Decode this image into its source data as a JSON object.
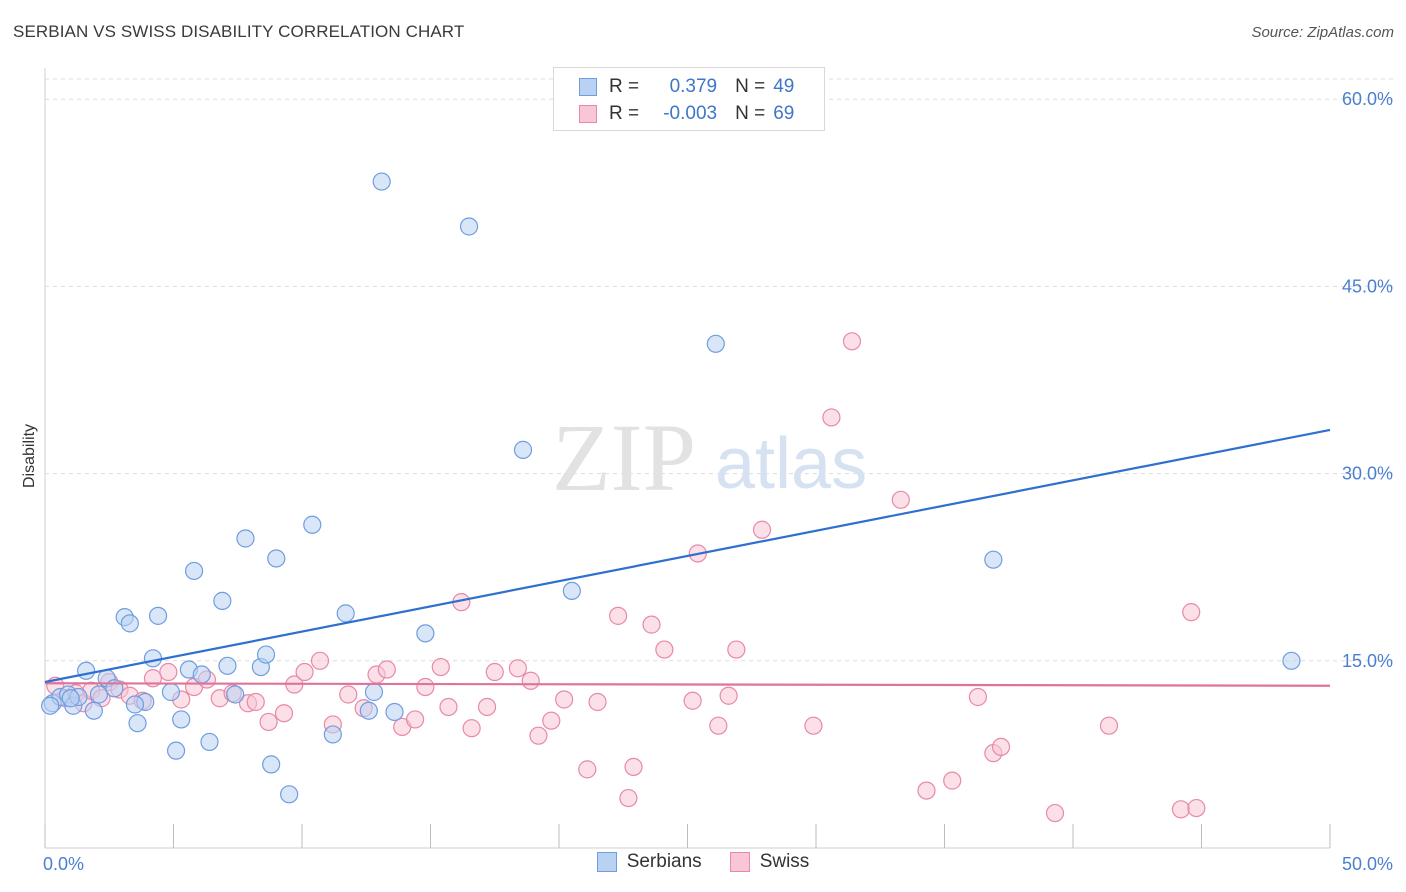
{
  "header": {
    "title": "SERBIAN VS SWISS DISABILITY CORRELATION CHART",
    "source": "Source: ZipAtlas.com"
  },
  "watermark": {
    "zip": "ZIP",
    "atlas": "atlas"
  },
  "legend": {
    "rows": [
      {
        "r_label": "R =",
        "r_value": "0.379",
        "n_label": "N =",
        "n_value": "49"
      },
      {
        "r_label": "R =",
        "r_value": "-0.003",
        "n_label": "N =",
        "n_value": "69"
      }
    ]
  },
  "bottom_legend": {
    "serbians": "Serbians",
    "swiss": "Swiss"
  },
  "colors": {
    "serbian_fill": "#b9d1f3",
    "serbian_stroke": "#6f9de0",
    "serbian_line": "#2f6fd0",
    "swiss_fill": "#f8c6d6",
    "swiss_stroke": "#e889a8",
    "swiss_line": "#e0739a",
    "tick_text": "#4a7fd0",
    "grid": "#dcdcdc"
  },
  "chart_data": {
    "type": "scatter",
    "title": "SERBIAN VS SWISS DISABILITY CORRELATION CHART",
    "xlabel": "",
    "ylabel": "Disability",
    "xlim": [
      0,
      50
    ],
    "ylim": [
      0,
      62.5
    ],
    "x_tick_labels": [
      "0.0%",
      "50.0%"
    ],
    "y_ticks": [
      15,
      30,
      45,
      60
    ],
    "y_tick_labels": [
      "15.0%",
      "30.0%",
      "45.0%",
      "60.0%"
    ],
    "series": [
      {
        "name": "Serbians",
        "trend": {
          "x": [
            0,
            50
          ],
          "y": [
            13.3,
            33.5
          ]
        },
        "points": [
          [
            0.3,
            11.6
          ],
          [
            0.6,
            12.1
          ],
          [
            0.9,
            12.3
          ],
          [
            1.1,
            11.4
          ],
          [
            1.3,
            12.1
          ],
          [
            1.6,
            14.2
          ],
          [
            1.9,
            11.0
          ],
          [
            2.1,
            12.3
          ],
          [
            2.4,
            13.6
          ],
          [
            2.7,
            12.8
          ],
          [
            3.1,
            18.5
          ],
          [
            3.3,
            18.0
          ],
          [
            3.6,
            10.0
          ],
          [
            3.9,
            11.7
          ],
          [
            4.2,
            15.2
          ],
          [
            4.4,
            18.6
          ],
          [
            4.9,
            12.5
          ],
          [
            5.1,
            7.8
          ],
          [
            5.3,
            10.3
          ],
          [
            5.6,
            14.3
          ],
          [
            5.8,
            22.2
          ],
          [
            6.1,
            13.9
          ],
          [
            6.4,
            8.5
          ],
          [
            6.9,
            19.8
          ],
          [
            7.1,
            14.6
          ],
          [
            7.4,
            12.3
          ],
          [
            7.8,
            24.8
          ],
          [
            8.4,
            14.5
          ],
          [
            8.6,
            15.5
          ],
          [
            8.8,
            6.7
          ],
          [
            9.0,
            23.2
          ],
          [
            9.5,
            4.3
          ],
          [
            10.4,
            25.9
          ],
          [
            11.2,
            9.1
          ],
          [
            11.7,
            18.8
          ],
          [
            12.6,
            11.0
          ],
          [
            12.8,
            12.5
          ],
          [
            13.1,
            53.4
          ],
          [
            13.6,
            10.9
          ],
          [
            14.8,
            17.2
          ],
          [
            16.5,
            49.8
          ],
          [
            18.6,
            31.9
          ],
          [
            20.5,
            20.6
          ],
          [
            26.1,
            40.4
          ],
          [
            36.9,
            23.1
          ],
          [
            48.5,
            15.0
          ],
          [
            0.2,
            11.4
          ],
          [
            1.0,
            12.0
          ],
          [
            3.5,
            11.5
          ]
        ]
      },
      {
        "name": "Swiss",
        "trend": {
          "x": [
            0,
            50
          ],
          "y": [
            13.2,
            13.0
          ]
        },
        "points": [
          [
            0.4,
            13.0
          ],
          [
            0.8,
            12.0
          ],
          [
            1.2,
            12.4
          ],
          [
            1.5,
            11.6
          ],
          [
            1.8,
            12.6
          ],
          [
            2.2,
            12.0
          ],
          [
            2.5,
            13.3
          ],
          [
            2.9,
            12.7
          ],
          [
            3.3,
            12.2
          ],
          [
            3.8,
            11.8
          ],
          [
            4.2,
            13.6
          ],
          [
            4.8,
            14.1
          ],
          [
            5.3,
            11.9
          ],
          [
            5.8,
            12.9
          ],
          [
            6.3,
            13.5
          ],
          [
            6.8,
            12.0
          ],
          [
            7.3,
            12.4
          ],
          [
            7.9,
            11.6
          ],
          [
            8.2,
            11.7
          ],
          [
            8.7,
            10.1
          ],
          [
            9.3,
            10.8
          ],
          [
            9.7,
            13.1
          ],
          [
            10.1,
            14.1
          ],
          [
            10.7,
            15.0
          ],
          [
            11.2,
            9.9
          ],
          [
            11.8,
            12.3
          ],
          [
            12.4,
            11.2
          ],
          [
            12.9,
            13.9
          ],
          [
            13.3,
            14.3
          ],
          [
            13.9,
            9.7
          ],
          [
            14.4,
            10.3
          ],
          [
            14.8,
            12.9
          ],
          [
            15.4,
            14.5
          ],
          [
            15.7,
            11.3
          ],
          [
            16.2,
            19.7
          ],
          [
            16.6,
            9.6
          ],
          [
            17.2,
            11.3
          ],
          [
            17.5,
            14.1
          ],
          [
            18.4,
            14.4
          ],
          [
            18.9,
            13.4
          ],
          [
            19.2,
            9.0
          ],
          [
            19.7,
            10.2
          ],
          [
            20.2,
            11.9
          ],
          [
            21.1,
            6.3
          ],
          [
            21.5,
            11.7
          ],
          [
            22.3,
            18.6
          ],
          [
            22.7,
            4.0
          ],
          [
            22.9,
            6.5
          ],
          [
            23.6,
            17.9
          ],
          [
            24.1,
            15.9
          ],
          [
            25.2,
            11.8
          ],
          [
            25.4,
            23.6
          ],
          [
            26.2,
            9.8
          ],
          [
            26.6,
            12.2
          ],
          [
            26.9,
            15.9
          ],
          [
            27.9,
            25.5
          ],
          [
            29.9,
            9.8
          ],
          [
            30.6,
            34.5
          ],
          [
            31.4,
            40.6
          ],
          [
            33.3,
            27.9
          ],
          [
            34.3,
            4.6
          ],
          [
            35.3,
            5.4
          ],
          [
            36.3,
            12.1
          ],
          [
            36.9,
            7.6
          ],
          [
            37.2,
            8.1
          ],
          [
            39.3,
            2.8
          ],
          [
            41.4,
            9.8
          ],
          [
            44.2,
            3.1
          ],
          [
            44.6,
            18.9
          ],
          [
            44.8,
            3.2
          ]
        ]
      }
    ]
  }
}
